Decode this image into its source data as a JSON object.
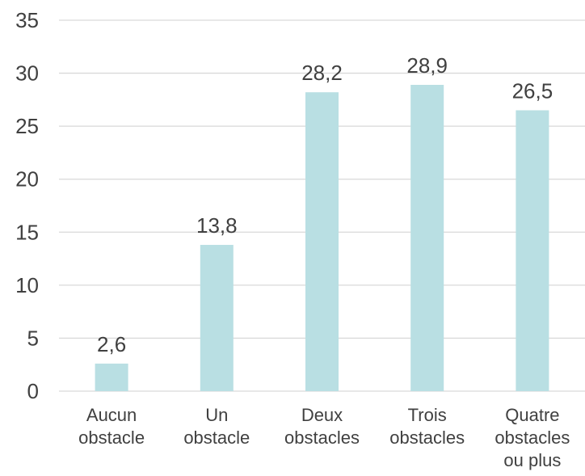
{
  "chart_data": {
    "type": "bar",
    "categories": [
      [
        "Aucun",
        "obstacle"
      ],
      [
        "Un",
        "obstacle"
      ],
      [
        "Deux",
        "obstacles"
      ],
      [
        "Trois",
        "obstacles"
      ],
      [
        "Quatre",
        "obstacles",
        "ou plus"
      ]
    ],
    "values": [
      2.6,
      13.8,
      28.2,
      28.9,
      26.5
    ],
    "data_labels": [
      "2,6",
      "13,8",
      "28,2",
      "28,9",
      "26,5"
    ],
    "ylim": [
      0,
      35
    ],
    "y_ticks": [
      "0",
      "5",
      "10",
      "15",
      "20",
      "25",
      "30",
      "35"
    ],
    "grid": true,
    "legend": "none",
    "colors": {
      "bar": "#b9dfe3",
      "grid": "#d9d9d9",
      "text": "#404040"
    }
  }
}
